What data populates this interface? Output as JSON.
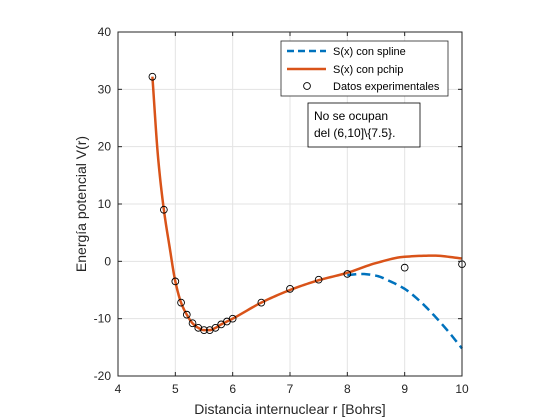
{
  "chart_data": {
    "type": "line",
    "xlabel": "Distancia internuclear r [Bohrs]",
    "ylabel": "Energía potencial V(r)",
    "xlim": [
      4,
      10
    ],
    "ylim": [
      -20,
      40
    ],
    "xticks": [
      4,
      5,
      6,
      7,
      8,
      9,
      10
    ],
    "yticks": [
      -20,
      -10,
      0,
      10,
      20,
      30,
      40
    ],
    "grid": true,
    "legend_position": "top-right",
    "series": [
      {
        "name": "S(x) con spline",
        "style": "dashed",
        "color": "#0072BD",
        "x": [
          8.0,
          8.25,
          8.5,
          8.75,
          9.0,
          9.25,
          9.5,
          9.75,
          10.0
        ],
        "y": [
          -2.4,
          -2.2,
          -2.5,
          -3.5,
          -4.8,
          -6.8,
          -9.3,
          -12.1,
          -15.2
        ]
      },
      {
        "name": "S(x) con pchip",
        "style": "solid",
        "color": "#D95319",
        "x": [
          4.6,
          4.7,
          4.8,
          4.9,
          5.0,
          5.1,
          5.2,
          5.3,
          5.4,
          5.5,
          5.6,
          5.7,
          5.8,
          5.9,
          6.0,
          6.5,
          7.0,
          7.5,
          8.0,
          8.5,
          9.0,
          9.5,
          10.0
        ],
        "y": [
          32.2,
          18.0,
          9.0,
          2.5,
          -3.5,
          -7.2,
          -9.3,
          -10.8,
          -11.6,
          -12.0,
          -12.0,
          -11.6,
          -11.0,
          -10.5,
          -10.0,
          -7.2,
          -5.0,
          -3.3,
          -2.0,
          -0.3,
          0.8,
          1.0,
          0.5
        ]
      },
      {
        "name": "Datos experimentales",
        "style": "markers",
        "color": "#000000",
        "x": [
          4.6,
          4.8,
          5.0,
          5.1,
          5.2,
          5.3,
          5.4,
          5.5,
          5.6,
          5.7,
          5.8,
          5.9,
          6.0,
          6.5,
          7.0,
          7.5,
          8.0,
          9.0,
          10.0
        ],
        "y": [
          32.2,
          9.0,
          -3.5,
          -7.2,
          -9.3,
          -10.8,
          -11.6,
          -12.0,
          -12.0,
          -11.6,
          -11.0,
          -10.5,
          -10.0,
          -7.2,
          -4.8,
          -3.2,
          -2.2,
          -1.1,
          -0.5
        ]
      }
    ],
    "annotation": {
      "lines": [
        "No se ocupan",
        "del (6,10]\\{7.5}."
      ]
    }
  }
}
